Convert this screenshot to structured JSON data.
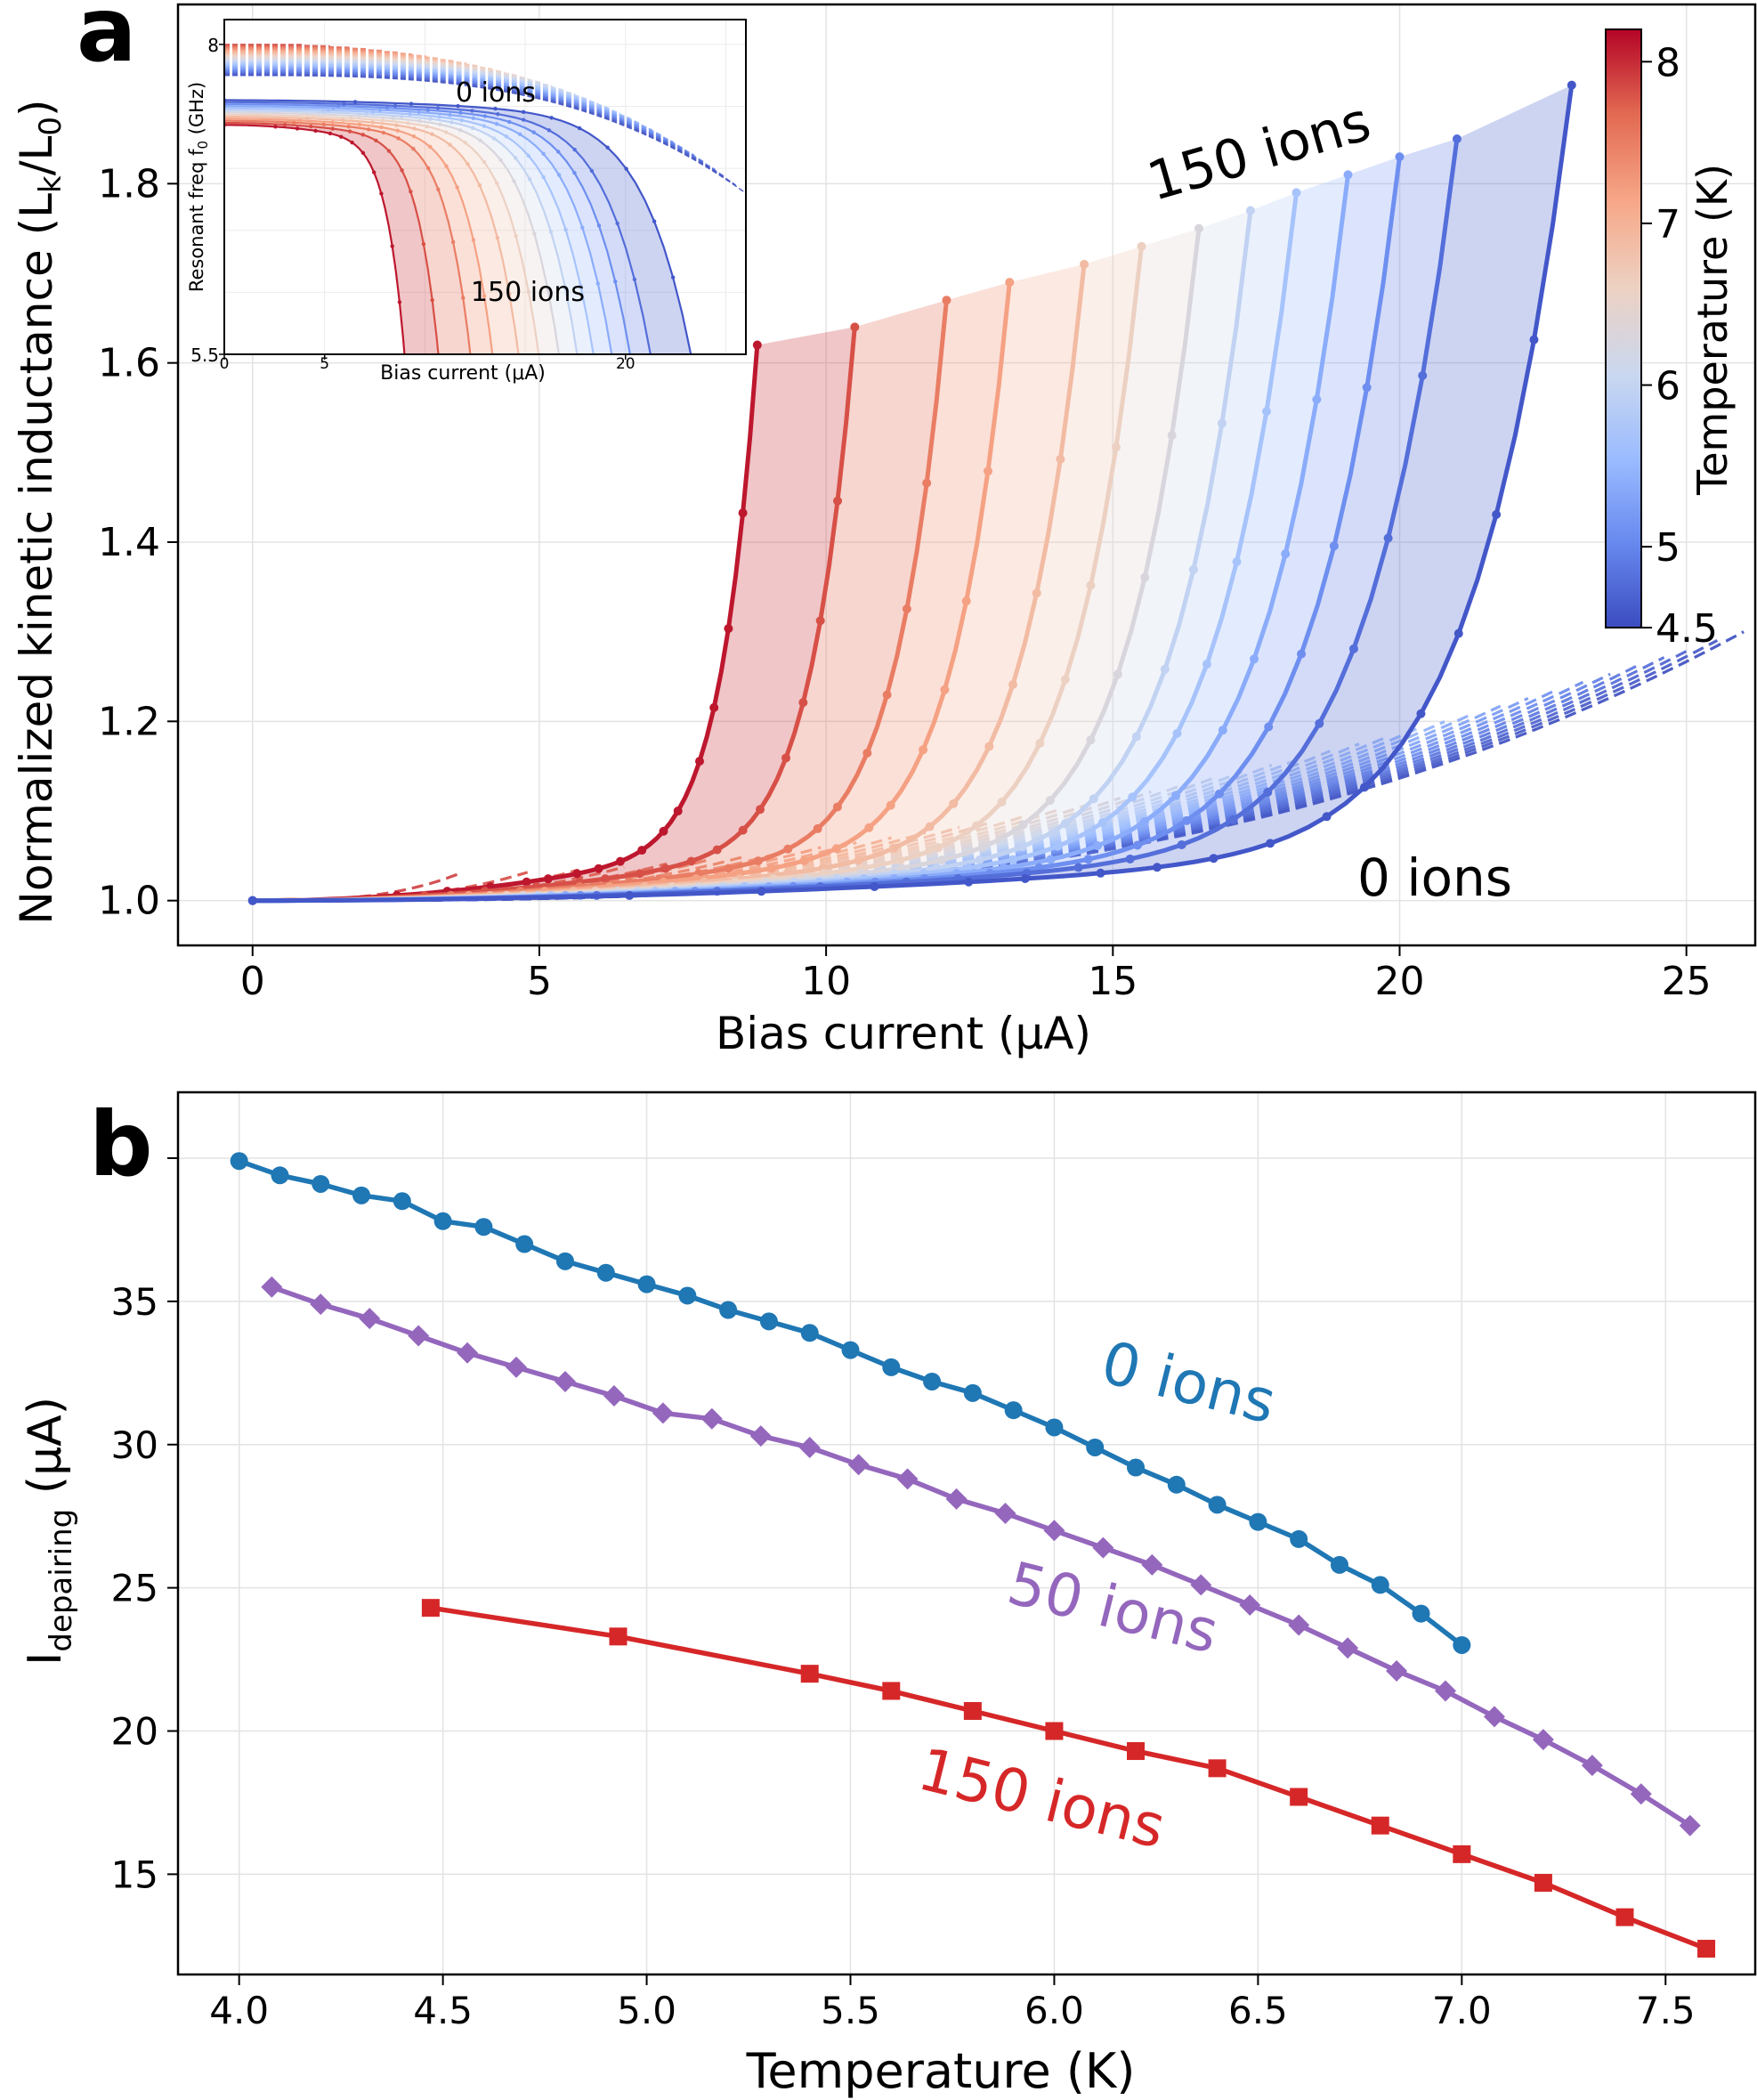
{
  "chart_data": [
    {
      "panel": "a",
      "type": "line",
      "panel_label": "a",
      "xlabel": "Bias current (μA)",
      "ylabel_main": "Normalized kinetic inductance (L",
      "ylabel_sub_k": "k",
      "ylabel_slash": "/L",
      "ylabel_sub_0": "0",
      "ylabel_close": ")",
      "xlim": [
        -1.3,
        26.2
      ],
      "ylim": [
        0.95,
        2.0
      ],
      "xticks": [
        0,
        5,
        10,
        15,
        20,
        25
      ],
      "xtick_labels": [
        "0",
        "5",
        "10",
        "15",
        "20",
        "25"
      ],
      "yticks": [
        1.0,
        1.2,
        1.4,
        1.6,
        1.8
      ],
      "ytick_labels": [
        "1.0",
        "1.2",
        "1.4",
        "1.6",
        "1.8"
      ],
      "grid": true,
      "annotations": {
        "ions150": "150 ions",
        "ions0": "0 ions"
      },
      "colorbar": {
        "label": "Temperature (K)",
        "range": [
          4.5,
          8.2
        ],
        "ticks": [
          4.5,
          5,
          6,
          7,
          8
        ],
        "tick_labels": [
          "4.5",
          "5",
          "6",
          "7",
          "8"
        ],
        "colormap": "coolwarm",
        "colors": [
          "#3b4cc0",
          "#6788ee",
          "#9abbff",
          "#c9d7f0",
          "#edd1c2",
          "#f7a889",
          "#e26952",
          "#b40426"
        ]
      },
      "series_150_ions": {
        "temperatures_K": [
          8.1,
          7.8,
          7.5,
          7.2,
          6.9,
          6.6,
          6.3,
          6.0,
          5.7,
          5.4,
          5.1,
          4.8,
          4.6
        ],
        "critical_current_uA": [
          8.8,
          10.5,
          12.1,
          13.2,
          14.5,
          15.5,
          16.5,
          17.4,
          18.2,
          19.1,
          20.0,
          21.0,
          23.0
        ],
        "max_inductance": [
          1.62,
          1.64,
          1.67,
          1.69,
          1.71,
          1.73,
          1.75,
          1.77,
          1.79,
          1.81,
          1.83,
          1.85,
          1.91
        ]
      },
      "series_0_ions": {
        "count": 40,
        "I_end_range_uA": [
          3.6,
          26.0
        ],
        "L_end_range": [
          1.03,
          1.3
        ],
        "style": "dashed"
      }
    },
    {
      "panel": "a-inset",
      "type": "line",
      "xlabel": "Bias current (μA)",
      "ylabel": "Resonant freq f",
      "ylabel_sub": "0",
      "ylabel_unit": " (GHz)",
      "xlim": [
        0,
        26
      ],
      "ylim": [
        5.5,
        8.2
      ],
      "xticks": [
        0,
        5,
        20
      ],
      "xtick_labels": [
        "0",
        "5",
        "20"
      ],
      "yticks": [
        5.5,
        8
      ],
      "ytick_labels": [
        "5.5",
        "8"
      ],
      "annotations": {
        "ions0": "0 ions",
        "ions150": "150 ions"
      },
      "series_0_ions_start_freq_GHz": [
        7.75,
        8.0
      ],
      "series_150_ions_start_freq_GHz": [
        7.35,
        7.55
      ]
    },
    {
      "panel": "b",
      "type": "line",
      "panel_label": "b",
      "xlabel": "Temperature  (K)",
      "ylabel": "I",
      "ylabel_sub": "depairing",
      "ylabel_unit": "  (μA)",
      "xlim": [
        3.85,
        7.72
      ],
      "ylim": [
        11.5,
        42.3
      ],
      "xticks": [
        4.0,
        4.5,
        5.0,
        5.5,
        6.0,
        6.5,
        7.0,
        7.5
      ],
      "xtick_labels": [
        "4.0",
        "4.5",
        "5.0",
        "5.5",
        "6.0",
        "6.5",
        "7.0",
        "7.5"
      ],
      "yticks": [
        15,
        20,
        25,
        30,
        35
      ],
      "ytick_labels": [
        "15",
        "20",
        "25",
        "30",
        "35"
      ],
      "grid": true,
      "series": [
        {
          "name": "0 ions",
          "color": "#1f77b4",
          "marker": "circle",
          "x": [
            4.0,
            4.1,
            4.2,
            4.3,
            4.4,
            4.5,
            4.6,
            4.7,
            4.8,
            4.9,
            5.0,
            5.1,
            5.2,
            5.3,
            5.4,
            5.5,
            5.6,
            5.7,
            5.8,
            5.9,
            6.0,
            6.1,
            6.2,
            6.3,
            6.4,
            6.5,
            6.6,
            6.7,
            6.8,
            6.9,
            7.0
          ],
          "values": [
            39.9,
            39.4,
            39.1,
            38.7,
            38.5,
            37.8,
            37.6,
            37.0,
            36.4,
            36.0,
            35.6,
            35.2,
            34.7,
            34.3,
            33.9,
            33.3,
            32.7,
            32.2,
            31.8,
            31.2,
            30.6,
            29.9,
            29.2,
            28.6,
            27.9,
            27.3,
            26.7,
            25.8,
            25.1,
            24.1,
            23.0
          ]
        },
        {
          "name": "50 ions",
          "color": "#9467bd",
          "marker": "diamond",
          "x": [
            4.08,
            4.2,
            4.32,
            4.44,
            4.56,
            4.68,
            4.8,
            4.92,
            5.04,
            5.16,
            5.28,
            5.4,
            5.52,
            5.64,
            5.76,
            5.88,
            6.0,
            6.12,
            6.24,
            6.36,
            6.48,
            6.6,
            6.72,
            6.84,
            6.96,
            7.08,
            7.2,
            7.32,
            7.44,
            7.56
          ],
          "values": [
            35.5,
            34.9,
            34.4,
            33.8,
            33.2,
            32.7,
            32.2,
            31.7,
            31.1,
            30.9,
            30.3,
            29.9,
            29.3,
            28.8,
            28.1,
            27.6,
            27.0,
            26.4,
            25.8,
            25.1,
            24.4,
            23.7,
            22.9,
            22.1,
            21.4,
            20.5,
            19.7,
            18.8,
            17.8,
            16.7
          ]
        },
        {
          "name": "150 ions",
          "color": "#d62728",
          "marker": "square",
          "x": [
            4.47,
            4.93,
            5.4,
            5.6,
            5.8,
            6.0,
            6.2,
            6.4,
            6.6,
            6.8,
            7.0,
            7.2,
            7.4,
            7.6
          ],
          "values": [
            24.3,
            23.3,
            22.0,
            21.4,
            20.7,
            20.0,
            19.3,
            18.7,
            17.7,
            16.7,
            15.7,
            14.7,
            13.5,
            12.4
          ]
        }
      ]
    }
  ]
}
